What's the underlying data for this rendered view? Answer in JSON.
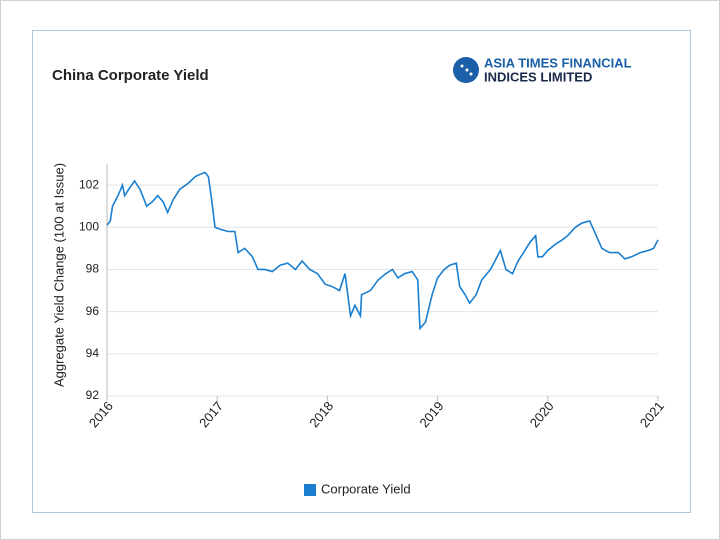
{
  "chart_data": {
    "type": "line",
    "title": "China Corporate Yield",
    "logo": [
      "ASIA TIMES FINANCIAL",
      "INDICES LIMITED"
    ],
    "ylabel": "Aggregate Yield Change (100 at Issue)",
    "xlim": [
      2016,
      2021
    ],
    "xticks": [
      2016,
      2017,
      2018,
      2019,
      2020,
      2021
    ],
    "ylim": [
      92,
      103
    ],
    "yticks": [
      92,
      94,
      96,
      98,
      100,
      102
    ],
    "grid": true,
    "legend": "bottom",
    "x": [
      2016.0,
      2016.03,
      2016.05,
      2016.1,
      2016.14,
      2016.16,
      2016.21,
      2016.25,
      2016.3,
      2016.36,
      2016.41,
      2016.46,
      2016.51,
      2016.55,
      2016.6,
      2016.66,
      2016.74,
      2016.8,
      2016.84,
      2016.89,
      2016.92,
      2016.95,
      2016.98,
      2017.03,
      2017.1,
      2017.16,
      2017.19,
      2017.25,
      2017.32,
      2017.37,
      2017.43,
      2017.5,
      2017.57,
      2017.64,
      2017.71,
      2017.77,
      2017.84,
      2017.91,
      2017.98,
      2018.04,
      2018.11,
      2018.16,
      2018.21,
      2018.25,
      2018.3,
      2018.31,
      2018.39,
      2018.46,
      2018.53,
      2018.59,
      2018.64,
      2018.7,
      2018.77,
      2018.82,
      2018.84,
      2018.89,
      2018.95,
      2019.0,
      2019.06,
      2019.11,
      2019.17,
      2019.2,
      2019.25,
      2019.29,
      2019.35,
      2019.4,
      2019.48,
      2019.53,
      2019.57,
      2019.62,
      2019.68,
      2019.73,
      2019.78,
      2019.84,
      2019.89,
      2019.91,
      2019.95,
      2020.0,
      2020.07,
      2020.13,
      2020.18,
      2020.25,
      2020.31,
      2020.38,
      2020.44,
      2020.49,
      2020.56,
      2020.64,
      2020.7,
      2020.76,
      2020.84,
      2020.91,
      2020.96,
      2021.0
    ],
    "series": [
      {
        "name": "Corporate Yield",
        "color": "#1a7fd0",
        "values": [
          100.1,
          100.3,
          101.0,
          101.5,
          102.0,
          101.5,
          101.9,
          102.2,
          101.8,
          101.0,
          101.2,
          101.5,
          101.2,
          100.7,
          101.3,
          101.8,
          102.1,
          102.4,
          102.5,
          102.6,
          102.4,
          101.3,
          100.0,
          99.9,
          99.8,
          99.8,
          98.8,
          99.0,
          98.6,
          98.0,
          98.0,
          97.9,
          98.2,
          98.3,
          98.0,
          98.4,
          98.0,
          97.8,
          97.3,
          97.2,
          97.0,
          97.8,
          95.8,
          96.3,
          95.8,
          96.8,
          97.0,
          97.5,
          97.8,
          98.0,
          97.6,
          97.8,
          97.9,
          97.5,
          95.2,
          95.5,
          96.8,
          97.6,
          98.0,
          98.2,
          98.3,
          97.2,
          96.8,
          96.4,
          96.8,
          97.5,
          98.0,
          98.5,
          98.9,
          98.0,
          97.8,
          98.4,
          98.8,
          99.3,
          99.6,
          98.6,
          98.6,
          98.9,
          99.2,
          99.4,
          99.6,
          100.0,
          100.2,
          100.3,
          99.6,
          99.0,
          98.8,
          98.8,
          98.5,
          98.6,
          98.8,
          98.9,
          99.0,
          99.4
        ]
      }
    ]
  }
}
